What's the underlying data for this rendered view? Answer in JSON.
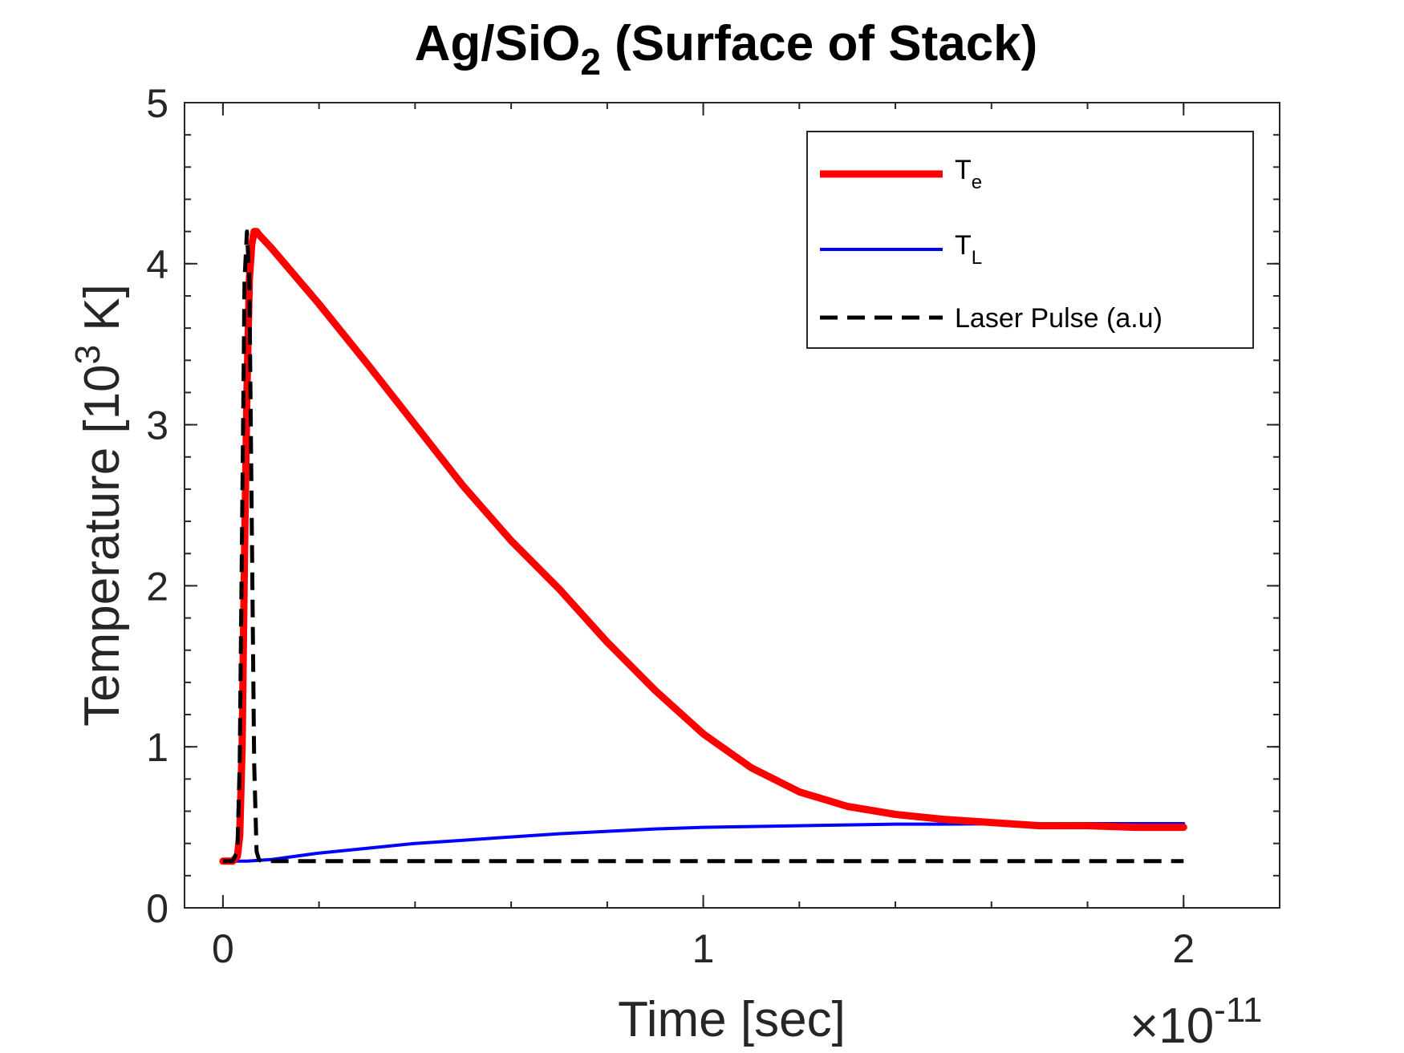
{
  "chart_data": {
    "type": "line",
    "title": {
      "main": "Ag/SiO",
      "subscript": "2",
      "rest": " (Surface of Stack)"
    },
    "xlabel": "Time [sec]",
    "ylabel": {
      "prefix": "Temperature [10",
      "superscript": "3",
      "suffix": " K]"
    },
    "x_exponent": {
      "times": "×10",
      "power": "-11"
    },
    "xlim": [
      -0.08,
      2.2
    ],
    "ylim": [
      0,
      5
    ],
    "x_ticks": [
      0,
      1,
      2
    ],
    "x_tick_labels": [
      "0",
      "1",
      "2"
    ],
    "y_ticks": [
      0,
      1,
      2,
      3,
      4,
      5
    ],
    "y_tick_labels": [
      "0",
      "1",
      "2",
      "3",
      "4",
      "5"
    ],
    "x_minor_step": 0.2,
    "y_minor_step": 0.2,
    "grid": false,
    "box": true,
    "legend_position": "top-right",
    "series": [
      {
        "key": "te",
        "name": "T",
        "name_sub": "e",
        "color": "#ff0000",
        "style": "solid",
        "width": "thick",
        "x": [
          0.0,
          0.02,
          0.03,
          0.035,
          0.04,
          0.045,
          0.05,
          0.055,
          0.06,
          0.065,
          0.07,
          0.075,
          0.1,
          0.2,
          0.3,
          0.4,
          0.5,
          0.6,
          0.7,
          0.8,
          0.9,
          1.0,
          1.1,
          1.2,
          1.3,
          1.4,
          1.5,
          1.6,
          1.7,
          1.8,
          1.9,
          2.0
        ],
        "y": [
          0.29,
          0.29,
          0.32,
          0.45,
          1.0,
          2.2,
          3.2,
          3.9,
          4.12,
          4.2,
          4.2,
          4.18,
          4.1,
          3.75,
          3.38,
          3.0,
          2.62,
          2.28,
          1.98,
          1.65,
          1.35,
          1.08,
          0.87,
          0.72,
          0.63,
          0.58,
          0.55,
          0.53,
          0.51,
          0.51,
          0.5,
          0.5
        ]
      },
      {
        "key": "tl",
        "name": "T",
        "name_sub": "L",
        "color": "#0000ff",
        "style": "solid",
        "width": "thin",
        "x": [
          0.0,
          0.05,
          0.1,
          0.2,
          0.3,
          0.4,
          0.5,
          0.6,
          0.7,
          0.8,
          0.9,
          1.0,
          1.1,
          1.2,
          1.3,
          1.4,
          1.5,
          1.6,
          1.7,
          1.8,
          1.9,
          2.0
        ],
        "y": [
          0.29,
          0.29,
          0.3,
          0.34,
          0.37,
          0.4,
          0.42,
          0.44,
          0.46,
          0.475,
          0.49,
          0.5,
          0.505,
          0.51,
          0.515,
          0.52,
          0.52,
          0.522,
          0.522,
          0.523,
          0.523,
          0.523
        ]
      },
      {
        "key": "laser",
        "name": "Laser Pulse (a.u)",
        "name_sub": "",
        "color": "#000000",
        "style": "dashed",
        "width": "medium",
        "x": [
          0.0,
          0.02,
          0.03,
          0.035,
          0.04,
          0.045,
          0.05,
          0.055,
          0.06,
          0.065,
          0.07,
          0.075,
          0.08,
          0.1,
          0.5,
          1.0,
          1.5,
          2.0
        ],
        "y": [
          0.29,
          0.29,
          0.35,
          0.9,
          2.4,
          3.9,
          4.2,
          3.9,
          2.4,
          0.9,
          0.35,
          0.3,
          0.29,
          0.29,
          0.29,
          0.29,
          0.29,
          0.29
        ]
      }
    ]
  }
}
